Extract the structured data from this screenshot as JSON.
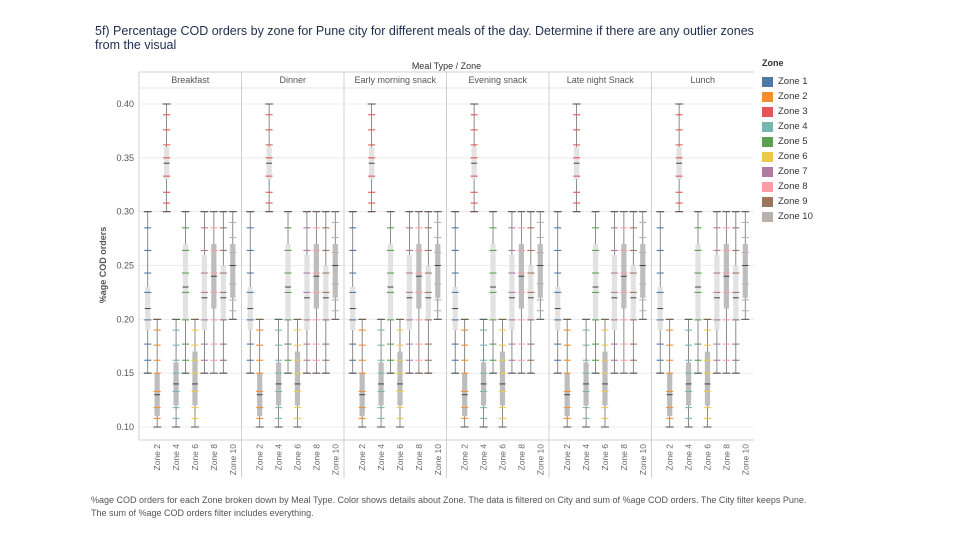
{
  "title": "5f) Percentage COD orders by zone for Pune city for different meals of the day. Determine if there are any outlier zones from the visual",
  "footnote": "%age COD orders for each Zone broken down by Meal Type.  Color shows details about Zone. The data is filtered on City and sum of %age COD orders. The City filter keeps Pune. The sum of %age COD orders filter includes everything.",
  "legend": {
    "title": "Zone",
    "items": [
      {
        "label": "Zone 1",
        "color": "#4e79a7"
      },
      {
        "label": "Zone 2",
        "color": "#f28e2b"
      },
      {
        "label": "Zone 3",
        "color": "#e15759"
      },
      {
        "label": "Zone 4",
        "color": "#76b7b2"
      },
      {
        "label": "Zone 5",
        "color": "#59a14f"
      },
      {
        "label": "Zone 6",
        "color": "#edc948"
      },
      {
        "label": "Zone 7",
        "color": "#b07aa1"
      },
      {
        "label": "Zone 8",
        "color": "#ff9da7"
      },
      {
        "label": "Zone 9",
        "color": "#9c755f"
      },
      {
        "label": "Zone 10",
        "color": "#bab0ac"
      }
    ]
  },
  "chart_data": {
    "type": "box",
    "column_header": "Meal Type / Zone",
    "ylabel": "%age COD orders",
    "ylim": [
      0.09,
      0.41
    ],
    "yticks": [
      "0.10",
      "0.15",
      "0.20",
      "0.25",
      "0.30",
      "0.35",
      "0.40"
    ],
    "grid": true,
    "legend_position": "right",
    "meal_types": [
      "Breakfast",
      "Dinner",
      "Early morning snack",
      "Evening snack",
      "Late night Snack",
      "Lunch"
    ],
    "zones": [
      "Zone 1",
      "Zone 2",
      "Zone 3",
      "Zone 4",
      "Zone 5",
      "Zone 6",
      "Zone 7",
      "Zone 8",
      "Zone 9",
      "Zone 10"
    ],
    "x_tick_labels": [
      "Zone 2",
      "Zone 4",
      "Zone 6",
      "Zone 8",
      "Zone 10"
    ],
    "box_stats_by_zone": [
      {
        "zone": "Zone 1",
        "min": 0.15,
        "q1": 0.19,
        "median": 0.21,
        "q3": 0.23,
        "max": 0.3
      },
      {
        "zone": "Zone 2",
        "min": 0.1,
        "q1": 0.11,
        "median": 0.13,
        "q3": 0.15,
        "max": 0.2
      },
      {
        "zone": "Zone 3",
        "min": 0.3,
        "q1": 0.33,
        "median": 0.345,
        "q3": 0.36,
        "max": 0.4
      },
      {
        "zone": "Zone 4",
        "min": 0.1,
        "q1": 0.12,
        "median": 0.14,
        "q3": 0.16,
        "max": 0.2
      },
      {
        "zone": "Zone 5",
        "min": 0.15,
        "q1": 0.2,
        "median": 0.23,
        "q3": 0.27,
        "max": 0.3
      },
      {
        "zone": "Zone 6",
        "min": 0.1,
        "q1": 0.12,
        "median": 0.14,
        "q3": 0.17,
        "max": 0.2
      },
      {
        "zone": "Zone 7",
        "min": 0.15,
        "q1": 0.19,
        "median": 0.22,
        "q3": 0.26,
        "max": 0.3
      },
      {
        "zone": "Zone 8",
        "min": 0.15,
        "q1": 0.21,
        "median": 0.24,
        "q3": 0.27,
        "max": 0.3
      },
      {
        "zone": "Zone 9",
        "min": 0.15,
        "q1": 0.2,
        "median": 0.22,
        "q3": 0.25,
        "max": 0.3
      },
      {
        "zone": "Zone 10",
        "min": 0.2,
        "q1": 0.22,
        "median": 0.25,
        "q3": 0.27,
        "max": 0.3
      }
    ]
  }
}
